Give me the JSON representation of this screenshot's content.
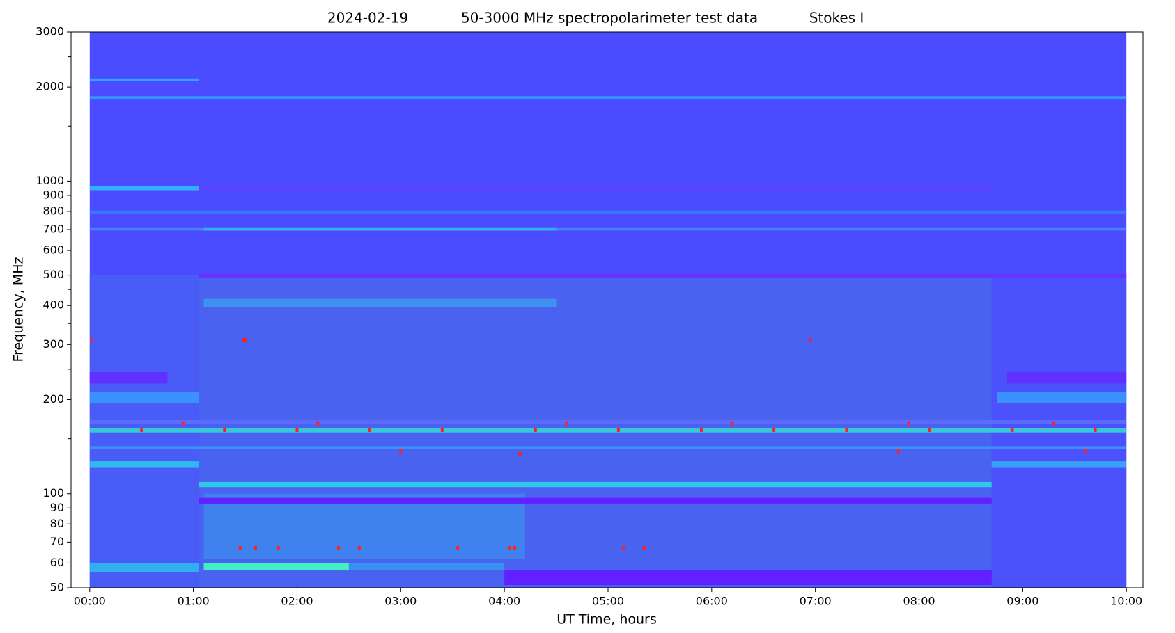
{
  "chart_data": {
    "type": "spectrogram",
    "title_date": "2024-02-19",
    "title": "50-3000 MHz spectropolarimeter test data",
    "title_mode": "Stokes I",
    "xlabel": "UT Time, hours",
    "ylabel": "Frequency, MHz",
    "xlim": [
      -0.18,
      10.16
    ],
    "ylim": [
      50,
      3000
    ],
    "yscale": "log",
    "xticks": [
      {
        "value": 0,
        "label": "00:00"
      },
      {
        "value": 1,
        "label": "01:00"
      },
      {
        "value": 2,
        "label": "02:00"
      },
      {
        "value": 3,
        "label": "03:00"
      },
      {
        "value": 4,
        "label": "04:00"
      },
      {
        "value": 5,
        "label": "05:00"
      },
      {
        "value": 6,
        "label": "06:00"
      },
      {
        "value": 7,
        "label": "07:00"
      },
      {
        "value": 8,
        "label": "08:00"
      },
      {
        "value": 9,
        "label": "09:00"
      },
      {
        "value": 10,
        "label": "10:00"
      }
    ],
    "yticks": [
      50,
      60,
      70,
      80,
      90,
      100,
      200,
      300,
      400,
      500,
      600,
      700,
      800,
      900,
      1000,
      2000,
      3000
    ],
    "yminor_ticks": [
      150,
      250,
      350,
      450,
      1500,
      2500
    ],
    "features": [
      {
        "t": [
          0,
          10
        ],
        "f": [
          50,
          3000
        ],
        "color": "#4b4bff"
      },
      {
        "t": [
          0,
          1.05
        ],
        "f": [
          50,
          500
        ],
        "color": "#4a5cf6"
      },
      {
        "t": [
          1.05,
          8.7
        ],
        "f": [
          50,
          500
        ],
        "color": "#4a62f0"
      },
      {
        "t": [
          8.7,
          10
        ],
        "f": [
          50,
          500
        ],
        "color": "#4b52fb"
      },
      {
        "t": [
          1.1,
          4.2
        ],
        "f": [
          62,
          100
        ],
        "color": "#3f82ee"
      },
      {
        "t": [
          0,
          1.05
        ],
        "f": [
          2090,
          2130
        ],
        "color": "#2fa8ff"
      },
      {
        "t": [
          0,
          10
        ],
        "f": [
          1835,
          1870
        ],
        "color": "#3298ff"
      },
      {
        "t": [
          0,
          1.05
        ],
        "f": [
          935,
          965
        ],
        "color": "#35b0ff"
      },
      {
        "t": [
          1.05,
          8.7
        ],
        "f": [
          940,
          955
        ],
        "color": "#6a3cff"
      },
      {
        "t": [
          0,
          10
        ],
        "f": [
          788,
          805
        ],
        "color": "#3a78ff"
      },
      {
        "t": [
          0,
          10
        ],
        "f": [
          695,
          708
        ],
        "color": "#4a80ff"
      },
      {
        "t": [
          1.1,
          4.5
        ],
        "f": [
          695,
          708
        ],
        "color": "#30b4f0"
      },
      {
        "t": [
          1.05,
          10
        ],
        "f": [
          490,
          505
        ],
        "color": "#6633ff"
      },
      {
        "t": [
          1.1,
          4.5
        ],
        "f": [
          395,
          420
        ],
        "color": "#3e92ee"
      },
      {
        "t": [
          0,
          0.75
        ],
        "f": [
          225,
          245
        ],
        "color": "#6030ff"
      },
      {
        "t": [
          8.85,
          10
        ],
        "f": [
          225,
          245
        ],
        "color": "#6030ff"
      },
      {
        "t": [
          0,
          1.05
        ],
        "f": [
          195,
          212
        ],
        "color": "#3a92ff"
      },
      {
        "t": [
          8.75,
          10
        ],
        "f": [
          195,
          212
        ],
        "color": "#3a92ff"
      },
      {
        "t": [
          0,
          10
        ],
        "f": [
          157,
          162
        ],
        "color": "#38c8d8"
      },
      {
        "t": [
          0,
          10
        ],
        "f": [
          167,
          172
        ],
        "color": "#5a6cff"
      },
      {
        "t": [
          0,
          10
        ],
        "f": [
          139,
          142
        ],
        "color": "#3a90ff"
      },
      {
        "t": [
          0,
          1.05
        ],
        "f": [
          121,
          127
        ],
        "color": "#30b8f0"
      },
      {
        "t": [
          8.7,
          10
        ],
        "f": [
          121,
          127
        ],
        "color": "#3aa0f8"
      },
      {
        "t": [
          1.05,
          8.7
        ],
        "f": [
          105,
          109
        ],
        "color": "#30c8e8"
      },
      {
        "t": [
          1.05,
          8.7
        ],
        "f": [
          93,
          97
        ],
        "color": "#6020ff"
      },
      {
        "t": [
          0,
          1.05
        ],
        "f": [
          56,
          60
        ],
        "color": "#30b0f0"
      },
      {
        "t": [
          1.1,
          2.5
        ],
        "f": [
          57,
          60
        ],
        "color": "#40f0c0"
      },
      {
        "t": [
          2.5,
          4.0
        ],
        "f": [
          57,
          60
        ],
        "color": "#3890f0"
      },
      {
        "t": [
          4.0,
          8.7
        ],
        "f": [
          51,
          57
        ],
        "color": "#6020ff"
      }
    ],
    "spot_color": "#ff2020",
    "spots": [
      [
        0.02,
        310
      ],
      [
        1.48,
        310
      ],
      [
        1.5,
        310
      ],
      [
        6.95,
        310
      ],
      [
        1.45,
        67
      ],
      [
        1.6,
        67
      ],
      [
        1.82,
        67
      ],
      [
        2.4,
        67
      ],
      [
        2.6,
        67
      ],
      [
        3.55,
        67
      ],
      [
        4.05,
        67
      ],
      [
        4.1,
        67
      ],
      [
        5.15,
        67
      ],
      [
        5.35,
        67
      ],
      [
        0.5,
        160
      ],
      [
        1.3,
        160
      ],
      [
        2.0,
        160
      ],
      [
        2.7,
        160
      ],
      [
        3.4,
        160
      ],
      [
        4.3,
        160
      ],
      [
        5.1,
        160
      ],
      [
        5.9,
        160
      ],
      [
        6.6,
        160
      ],
      [
        7.3,
        160
      ],
      [
        8.1,
        160
      ],
      [
        8.9,
        160
      ],
      [
        9.7,
        160
      ],
      [
        0.9,
        168
      ],
      [
        2.2,
        168
      ],
      [
        4.6,
        168
      ],
      [
        6.2,
        168
      ],
      [
        7.9,
        168
      ],
      [
        9.3,
        168
      ],
      [
        3.0,
        137
      ],
      [
        4.15,
        134
      ],
      [
        7.8,
        137
      ],
      [
        9.6,
        137
      ]
    ]
  }
}
